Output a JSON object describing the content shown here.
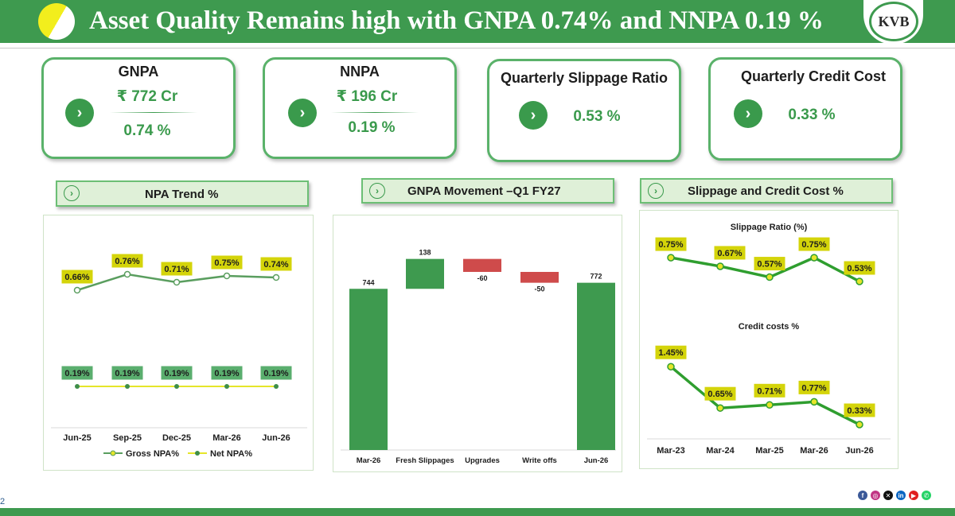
{
  "header": {
    "title": "Asset Quality Remains high with GNPA 0.74% and NNPA 0.19 %",
    "logo_text": "KVB"
  },
  "cards": [
    {
      "title": "GNPA",
      "value1": "₹ 772 Cr",
      "value2": "0.74 %"
    },
    {
      "title": "NNPA",
      "value1": "₹ 196 Cr",
      "value2": "0.19 %"
    },
    {
      "title": "Quarterly Slippage Ratio",
      "value1": "0.53 %"
    },
    {
      "title": "Quarterly Credit Cost",
      "value1": "0.33 %"
    }
  ],
  "sections": {
    "npa_trend": "NPA Trend %",
    "gnpa_movement": "GNPA Movement –Q1 FY27",
    "slippage_credit": "Slippage and Credit Cost %"
  },
  "page_number": "2",
  "colors": {
    "brand_green": "#3e9a4f",
    "label_yellow": "#d4d40a",
    "label_green": "#5aae6e",
    "decline_red": "#cf4b4b"
  },
  "social_icons": [
    "facebook-icon",
    "instagram-icon",
    "x-icon",
    "linkedin-icon",
    "youtube-icon",
    "whatsapp-icon"
  ],
  "chart_data": [
    {
      "type": "line",
      "categories": [
        "Jun-25",
        "Sep-25",
        "Dec-25",
        "Mar-26",
        "Jun-26"
      ],
      "series": [
        {
          "name": "Gross NPA%",
          "values": [
            0.66,
            0.76,
            0.71,
            0.75,
            0.74
          ],
          "labels": [
            "0.66%",
            "0.76%",
            "0.71%",
            "0.75%",
            "0.74%"
          ]
        },
        {
          "name": "Net NPA%",
          "values": [
            0.19,
            0.19,
            0.19,
            0.19,
            0.19
          ],
          "labels": [
            "0.19%",
            "0.19%",
            "0.19%",
            "0.19%",
            "0.19%"
          ]
        }
      ]
    },
    {
      "type": "bar",
      "subtype": "waterfall",
      "categories": [
        "Mar-26",
        "Fresh Slippages",
        "Upgrades",
        "Write offs",
        "Jun-26"
      ],
      "values": [
        744,
        138,
        -60,
        -50,
        772
      ],
      "labels": [
        "744",
        "138",
        "-60",
        "-50",
        "772"
      ]
    },
    {
      "type": "line",
      "title": "Slippage Ratio (%)",
      "categories": [
        "Mar-23",
        "Mar-24",
        "Mar-25",
        "Mar-26",
        "Jun-26"
      ],
      "values": [
        0.75,
        0.67,
        0.57,
        0.75,
        0.53
      ],
      "labels": [
        "0.75%",
        "0.67%",
        "0.57%",
        "0.75%",
        "0.53%"
      ]
    },
    {
      "type": "line",
      "title": "Credit costs %",
      "categories": [
        "Mar-23",
        "Mar-24",
        "Mar-25",
        "Mar-26",
        "Jun-26"
      ],
      "values": [
        1.45,
        0.65,
        0.71,
        0.77,
        0.33
      ],
      "labels": [
        "1.45%",
        "0.65%",
        "0.71%",
        "0.77%",
        "0.33%"
      ]
    }
  ]
}
